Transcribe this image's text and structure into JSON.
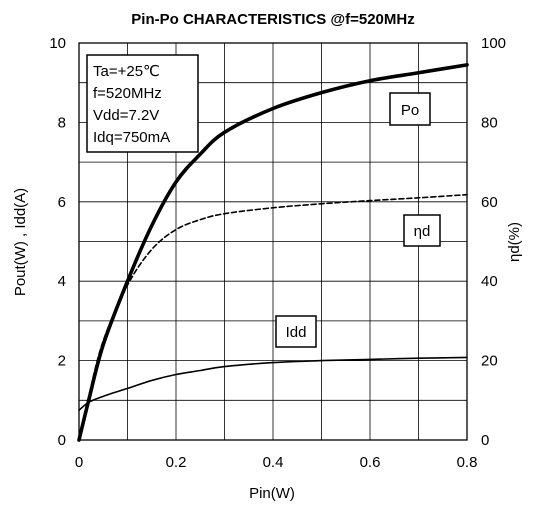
{
  "chart_data": {
    "type": "line",
    "title": "Pin-Po CHARACTERISTICS  @f=520MHz",
    "xlabel": "Pin(W)",
    "ylabel": "Pout(W) , Idd(A)",
    "y2label": "ηd(%)",
    "xlim": [
      0,
      0.8
    ],
    "ylim": [
      0,
      10
    ],
    "y2lim": [
      0,
      100
    ],
    "x_ticks": [
      "0",
      "0.2",
      "0.4",
      "0.6",
      "0.8"
    ],
    "y_ticks": [
      "0",
      "2",
      "4",
      "6",
      "8",
      "10"
    ],
    "y2_ticks": [
      "0",
      "20",
      "40",
      "60",
      "80",
      "100"
    ],
    "grid": true,
    "conditions": [
      "Ta=+25℃",
      "f=520MHz",
      "Vdd=7.2V",
      "Idq=750mA"
    ],
    "series": [
      {
        "name": "Po",
        "axis": "left",
        "style": "solid-thick",
        "x": [
          0,
          0.02,
          0.05,
          0.1,
          0.15,
          0.2,
          0.25,
          0.3,
          0.4,
          0.5,
          0.6,
          0.7,
          0.8
        ],
        "y": [
          0,
          1.0,
          2.4,
          4.0,
          5.4,
          6.5,
          7.2,
          7.75,
          8.35,
          8.75,
          9.05,
          9.25,
          9.45
        ]
      },
      {
        "name": "ηd",
        "axis": "right",
        "style": "dashed",
        "x": [
          0,
          0.02,
          0.05,
          0.1,
          0.15,
          0.2,
          0.25,
          0.3,
          0.4,
          0.5,
          0.6,
          0.7,
          0.8
        ],
        "y": [
          0,
          11,
          25,
          39,
          48,
          53,
          55.5,
          57,
          58.5,
          59.5,
          60.3,
          61,
          61.8
        ]
      },
      {
        "name": "Idd",
        "axis": "left",
        "style": "solid",
        "x": [
          0,
          0.02,
          0.05,
          0.1,
          0.15,
          0.2,
          0.25,
          0.3,
          0.4,
          0.5,
          0.6,
          0.7,
          0.8
        ],
        "y": [
          0.75,
          0.95,
          1.1,
          1.3,
          1.5,
          1.65,
          1.75,
          1.85,
          1.95,
          2.0,
          2.03,
          2.06,
          2.08
        ]
      }
    ]
  }
}
